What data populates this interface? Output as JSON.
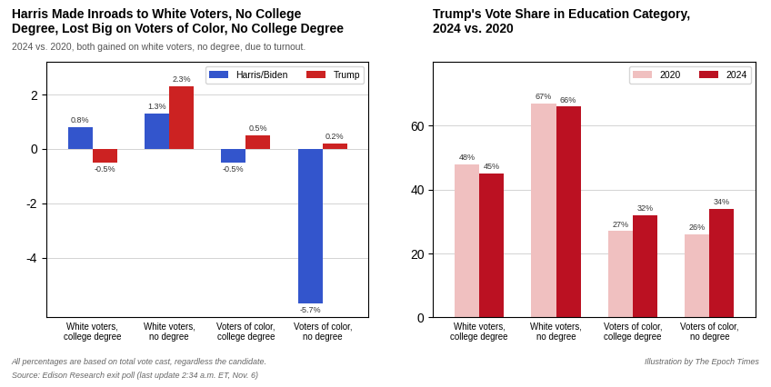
{
  "chart_data": [
    {
      "type": "bar",
      "title": "Harris Made Inroads to White Voters, No College\nDegree, Lost Big on Voters of Color, No College Degree",
      "subtitle": "2024 vs. 2020, both gained on white voters, no degree, due to turnout.",
      "categories": [
        "White voters,\ncollege degree",
        "White voters,\nno degree",
        "Voters of color,\ncollege degree",
        "Voters of color,\nno degree"
      ],
      "series": [
        {
          "name": "Harris/Biden",
          "color": "#3355cc",
          "values": [
            0.8,
            1.3,
            -0.5,
            -5.7
          ],
          "value_labels": [
            "0.8%",
            "1.3%",
            "-0.5%",
            "-5.7%"
          ]
        },
        {
          "name": "Trump",
          "color": "#cc2222",
          "values": [
            -0.5,
            2.3,
            0.5,
            0.2
          ],
          "value_labels": [
            "-0.5%",
            "2.3%",
            "0.5%",
            "0.2%"
          ]
        }
      ],
      "ylim": [
        -6.2,
        3.2
      ],
      "yticks": [
        -4,
        -2,
        0,
        2
      ],
      "grid": true,
      "legend": "upper right",
      "data_labels": true,
      "annotations": [
        "All percentages are based on total vote cast, regardless the candidate.",
        "Source: Edison Research exit poll (last update 2:34 a.m. ET, Nov. 6)"
      ]
    },
    {
      "type": "bar",
      "title": "Trump's Vote Share in Education Category,\n2024 vs. 2020",
      "categories": [
        "White voters,\ncollege degree",
        "White voters,\nno degree",
        "Voters of color,\ncollege degree",
        "Voters of color,\nno degree"
      ],
      "series": [
        {
          "name": "2020",
          "color": "#f0c0c0",
          "values": [
            48,
            67,
            27,
            26
          ],
          "value_labels": [
            "48%",
            "67%",
            "27%",
            "26%"
          ]
        },
        {
          "name": "2024",
          "color": "#bb1122",
          "values": [
            45,
            66,
            32,
            34
          ],
          "value_labels": [
            "45%",
            "66%",
            "32%",
            "34%"
          ]
        }
      ],
      "ylim": [
        0,
        80
      ],
      "yticks": [
        0,
        20,
        40,
        60
      ],
      "grid": true,
      "legend": "upper right",
      "data_labels": true,
      "annotations": [
        "Illustration by The Epoch Times"
      ]
    }
  ]
}
